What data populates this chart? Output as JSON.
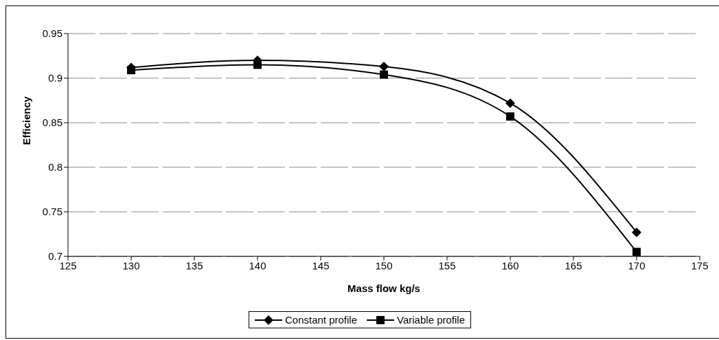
{
  "chart_data": {
    "type": "line",
    "xlabel": "Mass flow kg/s",
    "ylabel": "Efficiency",
    "x": [
      130,
      140,
      150,
      160,
      170
    ],
    "series": [
      {
        "name": "Constant profile",
        "color": "#000000",
        "marker": "diamond",
        "values": [
          0.912,
          0.92,
          0.913,
          0.872,
          0.727
        ]
      },
      {
        "name": "Variable profile",
        "color": "#000000",
        "marker": "square",
        "values": [
          0.909,
          0.915,
          0.904,
          0.857,
          0.705
        ]
      }
    ],
    "xlim": [
      125,
      175
    ],
    "xticks": [
      125,
      130,
      135,
      140,
      145,
      150,
      155,
      160,
      165,
      170,
      175
    ],
    "ylim": [
      0.7,
      0.95
    ],
    "yticks": [
      0.7,
      0.75,
      0.8,
      0.85,
      0.9,
      0.95
    ],
    "grid": "y",
    "legend": "bottom",
    "line_style": "solid"
  }
}
